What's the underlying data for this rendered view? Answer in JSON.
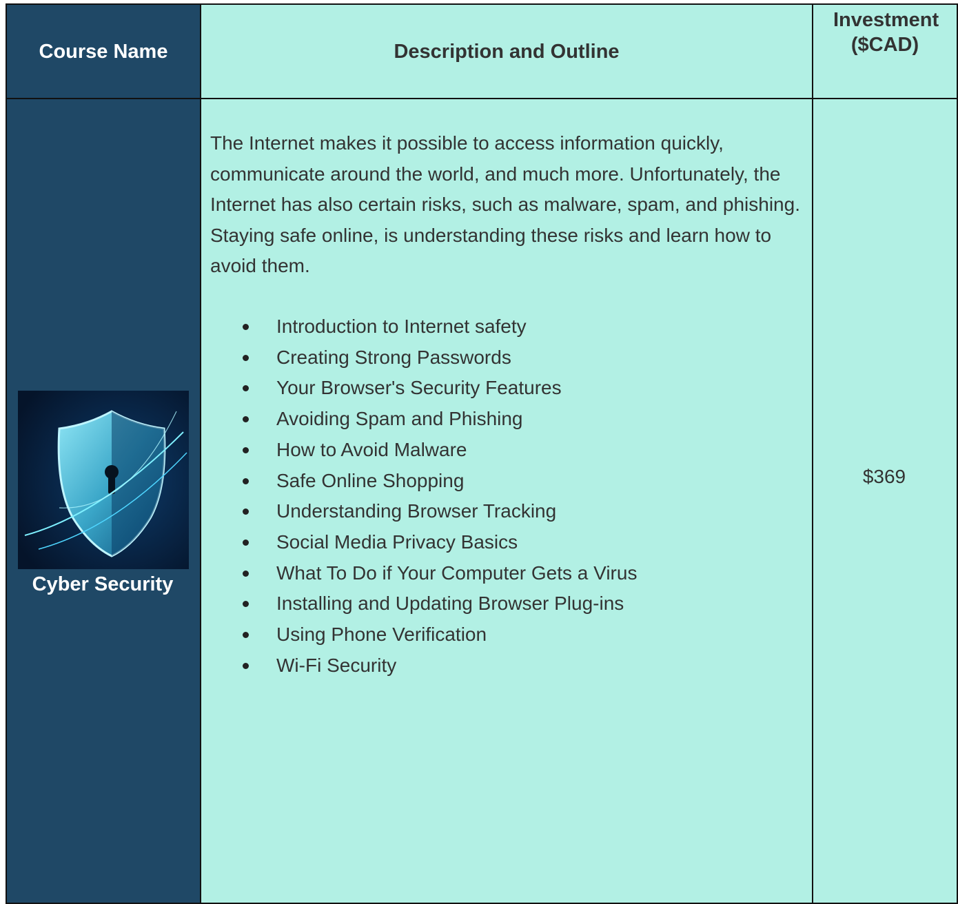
{
  "table": {
    "header": [
      "Course Name",
      "Description and Outline",
      "Investment ($CAD)"
    ],
    "rows": [
      {
        "course": "Cyber Security",
        "description": "The Internet makes it possible to access information quickly, communicate around the world, and much more. Unfortunately, the Internet has also certain risks, such as malware, spam, and phishing. Staying safe online, is understanding these risks and learn how to avoid them.",
        "outline": [
          "Introduction to Internet safety",
          "Creating Strong Passwords",
          "Your Browser's Security Features",
          "Avoiding Spam and Phishing",
          "How to Avoid Malware",
          "Safe Online Shopping",
          "Understanding Browser Tracking",
          "Social Media Privacy Basics",
          "What To Do if Your Computer Gets a Virus",
          "Installing and Updating Browser Plug-ins",
          "Using Phone Verification",
          "Wi-Fi Security"
        ],
        "price": "$369"
      }
    ]
  }
}
